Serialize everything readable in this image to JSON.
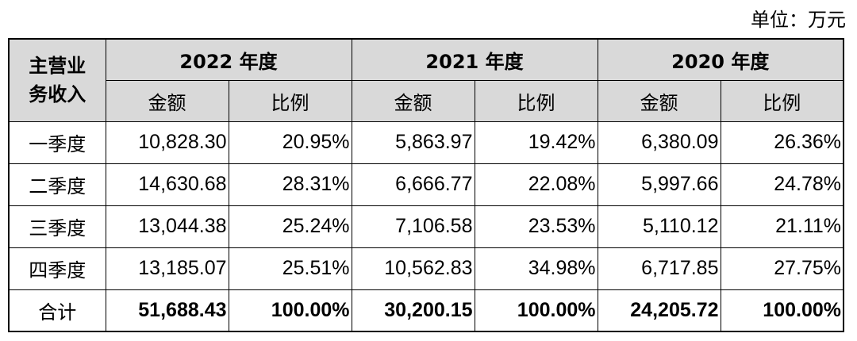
{
  "unit_label": "单位：万元",
  "header": {
    "row_header_line1": "主营业",
    "row_header_line2": "务收入",
    "years": [
      "2022 年度",
      "2021 年度",
      "2020 年度"
    ],
    "amount_label": "金额",
    "ratio_label": "比例"
  },
  "rows": [
    {
      "label": "一季度",
      "cells": [
        "10,828.30",
        "20.95%",
        "5,863.97",
        "19.42%",
        "6,380.09",
        "26.36%"
      ]
    },
    {
      "label": "二季度",
      "cells": [
        "14,630.68",
        "28.31%",
        "6,666.77",
        "22.08%",
        "5,997.66",
        "24.78%"
      ]
    },
    {
      "label": "三季度",
      "cells": [
        "13,044.38",
        "25.24%",
        "7,106.58",
        "23.53%",
        "5,110.12",
        "21.11%"
      ]
    },
    {
      "label": "四季度",
      "cells": [
        "13,185.07",
        "25.51%",
        "10,562.83",
        "34.98%",
        "6,717.85",
        "27.75%"
      ]
    }
  ],
  "total": {
    "label": "合计",
    "cells": [
      "51,688.43",
      "100.00%",
      "30,200.15",
      "100.00%",
      "24,205.72",
      "100.00%"
    ]
  },
  "colors": {
    "header_bg": "#d9d9d9",
    "border": "#000000",
    "text": "#000000"
  }
}
